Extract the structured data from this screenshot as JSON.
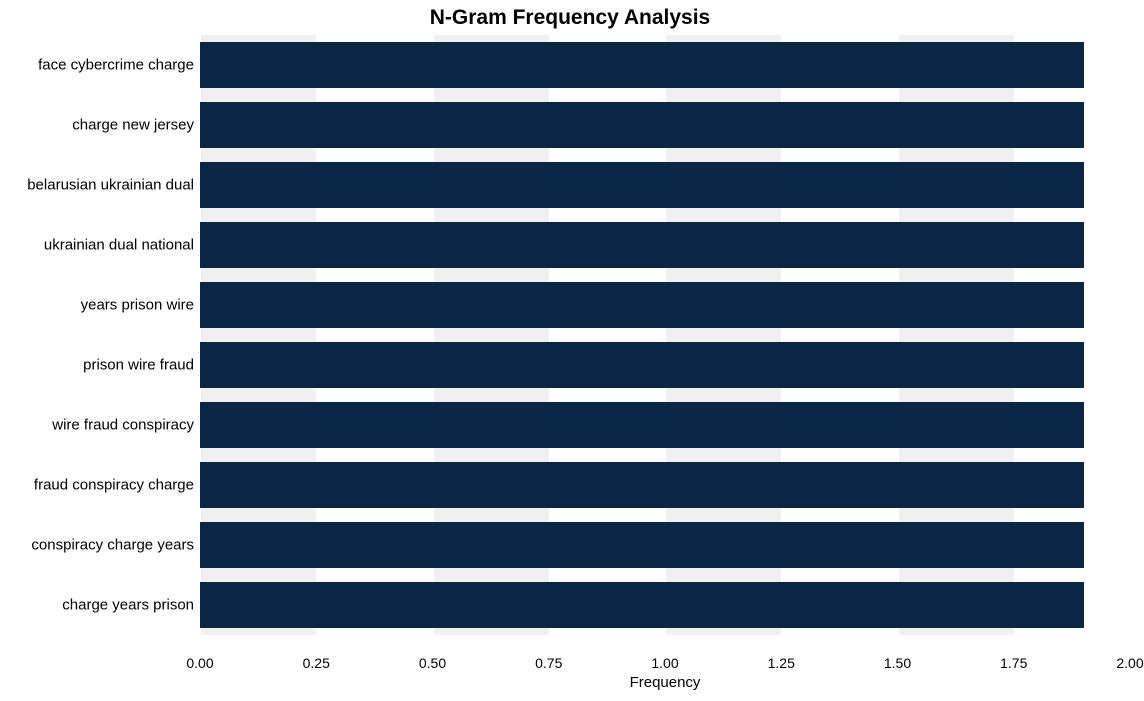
{
  "chart": {
    "type": "bar-horizontal",
    "title": "N-Gram Frequency Analysis",
    "title_fontsize": 21,
    "title_fontweight": "bold",
    "title_color": "#000000",
    "background_color": "#ffffff",
    "plot_background": "#ffffff",
    "bar_color": "#0b2545",
    "gridband_color": "#f0f0f0",
    "gridline_color": "#ffffff",
    "xaxis_title": "Frequency",
    "xaxis_title_fontsize": 15,
    "label_fontsize": 15,
    "tick_fontsize": 14,
    "xlim": [
      0,
      2
    ],
    "xticks": [
      {
        "pos": 0.0,
        "label": "0.00"
      },
      {
        "pos": 0.25,
        "label": "0.25"
      },
      {
        "pos": 0.5,
        "label": "0.50"
      },
      {
        "pos": 0.75,
        "label": "0.75"
      },
      {
        "pos": 1.0,
        "label": "1.00"
      },
      {
        "pos": 1.25,
        "label": "1.25"
      },
      {
        "pos": 1.5,
        "label": "1.50"
      },
      {
        "pos": 1.75,
        "label": "1.75"
      },
      {
        "pos": 2.0,
        "label": "2.00"
      }
    ],
    "categories": [
      "face cybercrime charge",
      "charge new jersey",
      "belarusian ukrainian dual",
      "ukrainian dual national",
      "years prison wire",
      "prison wire fraud",
      "wire fraud conspiracy",
      "fraud conspiracy charge",
      "conspiracy charge years",
      "charge years prison"
    ],
    "values": [
      1.9,
      1.9,
      1.9,
      1.9,
      1.9,
      1.9,
      1.9,
      1.9,
      1.9,
      1.9
    ],
    "bar_height_ratio": 0.77,
    "row_gap_ratio": 0.23
  }
}
